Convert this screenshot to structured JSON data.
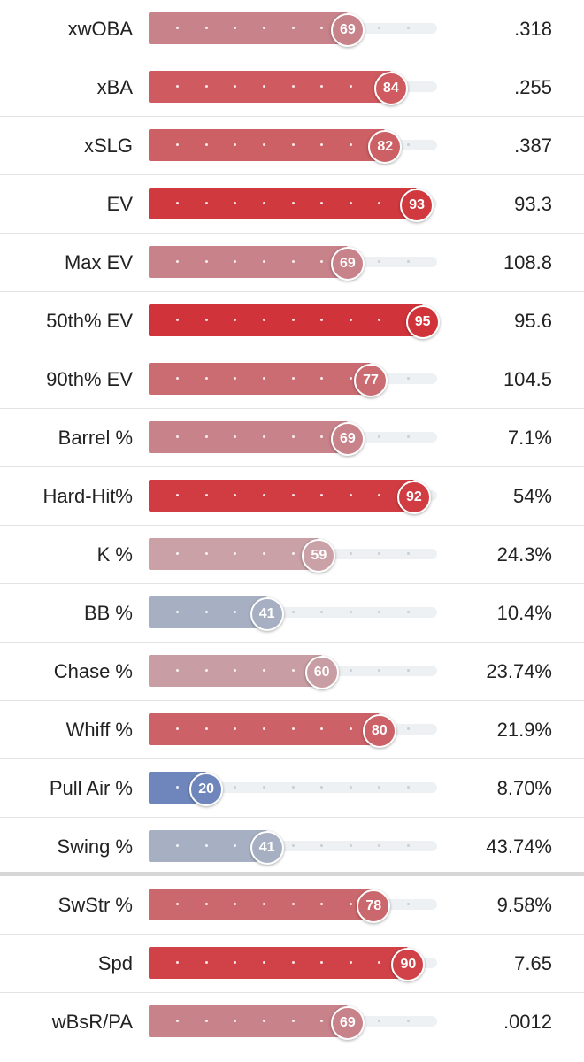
{
  "chart_data": {
    "type": "bar",
    "xlim": [
      0,
      100
    ],
    "rows": [
      {
        "label": "xwOBA",
        "percentile": 69,
        "value": ".318",
        "color": "#c7828a"
      },
      {
        "label": "xBA",
        "percentile": 84,
        "value": ".255",
        "color": "#cf5a5f"
      },
      {
        "label": "xSLG",
        "percentile": 82,
        "value": ".387",
        "color": "#cc6064"
      },
      {
        "label": "EV",
        "percentile": 93,
        "value": "93.3",
        "color": "#d03a3f"
      },
      {
        "label": "Max EV",
        "percentile": 69,
        "value": "108.8",
        "color": "#c7828a"
      },
      {
        "label": "50th% EV",
        "percentile": 95,
        "value": "95.6",
        "color": "#d0343a"
      },
      {
        "label": "90th% EV",
        "percentile": 77,
        "value": "104.5",
        "color": "#ca6c72"
      },
      {
        "label": "Barrel %",
        "percentile": 69,
        "value": "7.1%",
        "color": "#c7828a"
      },
      {
        "label": "Hard-Hit%",
        "percentile": 92,
        "value": "54%",
        "color": "#d03c41"
      },
      {
        "label": "K %",
        "percentile": 59,
        "value": "24.3%",
        "color": "#c9a1a7"
      },
      {
        "label": "BB %",
        "percentile": 41,
        "value": "10.4%",
        "color": "#a7b0c3"
      },
      {
        "label": "Chase %",
        "percentile": 60,
        "value": "23.74%",
        "color": "#c89da3"
      },
      {
        "label": "Whiff %",
        "percentile": 80,
        "value": "21.9%",
        "color": "#cc6268"
      },
      {
        "label": "Pull Air %",
        "percentile": 20,
        "value": "8.70%",
        "color": "#6e86bb"
      },
      {
        "label": "Swing %",
        "percentile": 41,
        "value": "43.74%",
        "color": "#a7b0c3"
      },
      {
        "label": "SwStr %",
        "percentile": 78,
        "value": "9.58%",
        "color": "#cb686d"
      },
      {
        "label": "Spd",
        "percentile": 90,
        "value": "7.65",
        "color": "#d04247"
      },
      {
        "label": "wBsR/PA",
        "percentile": 69,
        "value": ".0012",
        "color": "#c7828a"
      }
    ]
  }
}
